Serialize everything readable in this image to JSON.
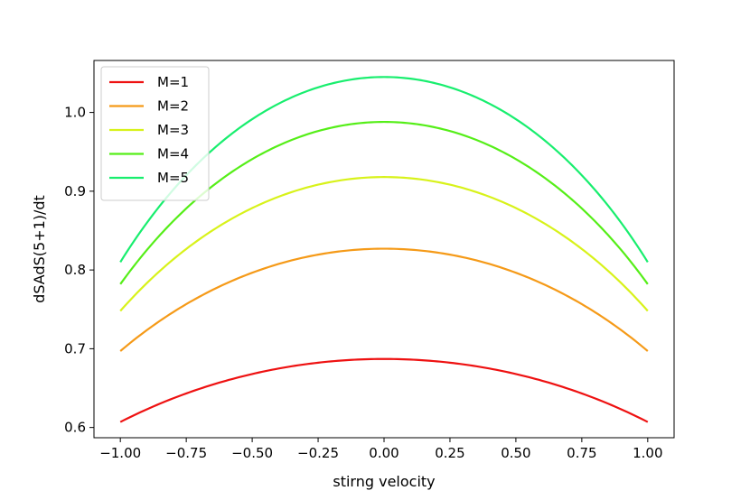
{
  "chart_data": {
    "type": "line",
    "title": "",
    "xlabel": "stirng velocity",
    "ylabel": "dSAdS(5+1)/dt",
    "xlim": [
      -1.1,
      1.1
    ],
    "ylim": [
      0.587,
      1.066
    ],
    "xticks": [
      -1.0,
      -0.75,
      -0.5,
      -0.25,
      0.0,
      0.25,
      0.5,
      0.75,
      1.0
    ],
    "xtick_labels": [
      "−1.00",
      "−0.75",
      "−0.50",
      "−0.25",
      "0.00",
      "0.25",
      "0.50",
      "0.75",
      "1.00"
    ],
    "yticks": [
      0.6,
      0.7,
      0.8,
      0.9,
      1.0
    ],
    "ytick_labels": [
      "0.6",
      "0.7",
      "0.8",
      "0.9",
      "1.0"
    ],
    "grid": false,
    "legend_position": "top-left",
    "x": [
      -1.0,
      -0.9,
      -0.75,
      -0.5,
      -0.25,
      0.0,
      0.25,
      0.5,
      0.75,
      0.9,
      1.0
    ],
    "series": [
      {
        "name": "M=1",
        "color": "#ee1111",
        "values": [
          0.607,
          0.626,
          0.646,
          0.668,
          0.682,
          0.687,
          0.682,
          0.668,
          0.646,
          0.626,
          0.607
        ]
      },
      {
        "name": "M=2",
        "color": "#f59a18",
        "values": [
          0.697,
          0.728,
          0.762,
          0.797,
          0.819,
          0.827,
          0.819,
          0.797,
          0.762,
          0.728,
          0.697
        ]
      },
      {
        "name": "M=3",
        "color": "#d8f21a",
        "values": [
          0.748,
          0.789,
          0.835,
          0.88,
          0.908,
          0.918,
          0.908,
          0.88,
          0.835,
          0.789,
          0.748
        ]
      },
      {
        "name": "M=4",
        "color": "#55ee18",
        "values": [
          0.782,
          0.832,
          0.889,
          0.944,
          0.977,
          0.988,
          0.977,
          0.944,
          0.889,
          0.832,
          0.782
        ]
      },
      {
        "name": "M=5",
        "color": "#18ee6e",
        "values": [
          0.81,
          0.864,
          0.929,
          0.995,
          1.033,
          1.045,
          1.033,
          0.995,
          0.929,
          0.864,
          0.81
        ]
      }
    ]
  }
}
